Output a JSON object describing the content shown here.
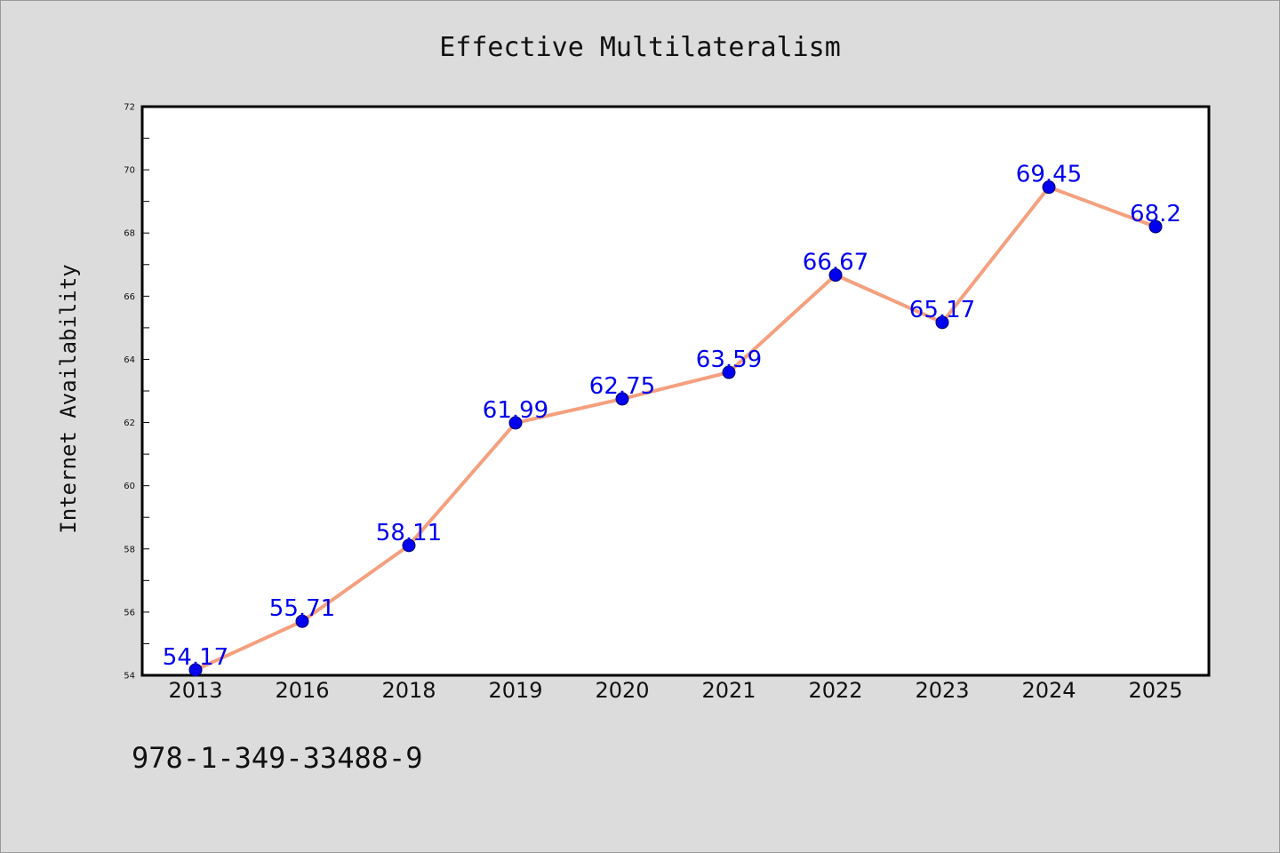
{
  "chart_data": {
    "type": "line",
    "title": "Effective Multilateralism",
    "xlabel": "",
    "ylabel": "Internet Availability",
    "categories": [
      "2013",
      "2016",
      "2018",
      "2019",
      "2020",
      "2021",
      "2022",
      "2023",
      "2024",
      "2025"
    ],
    "series": [
      {
        "values": [
          54.17,
          55.71,
          58.11,
          61.99,
          62.75,
          63.59,
          66.67,
          65.17,
          69.45,
          68.2
        ],
        "labels": [
          "54.17",
          "55.71",
          "58.11",
          "61.99",
          "62.75",
          "63.59",
          "66.67",
          "65.17",
          "69.45",
          "68.2"
        ]
      }
    ],
    "ylim": [
      54,
      72
    ],
    "yticks": [
      "54",
      "56",
      "58",
      "60",
      "62",
      "64",
      "66",
      "68",
      "70",
      "72"
    ],
    "grid": false,
    "legend": "none"
  },
  "footer": {
    "isbn": "978-1-349-33488-9"
  },
  "colors": {
    "line": "#f4a07f",
    "marker": "#0000ee",
    "data_label": "#0000ee",
    "background": "#dcdcdc",
    "plot_background": "#ffffff"
  }
}
